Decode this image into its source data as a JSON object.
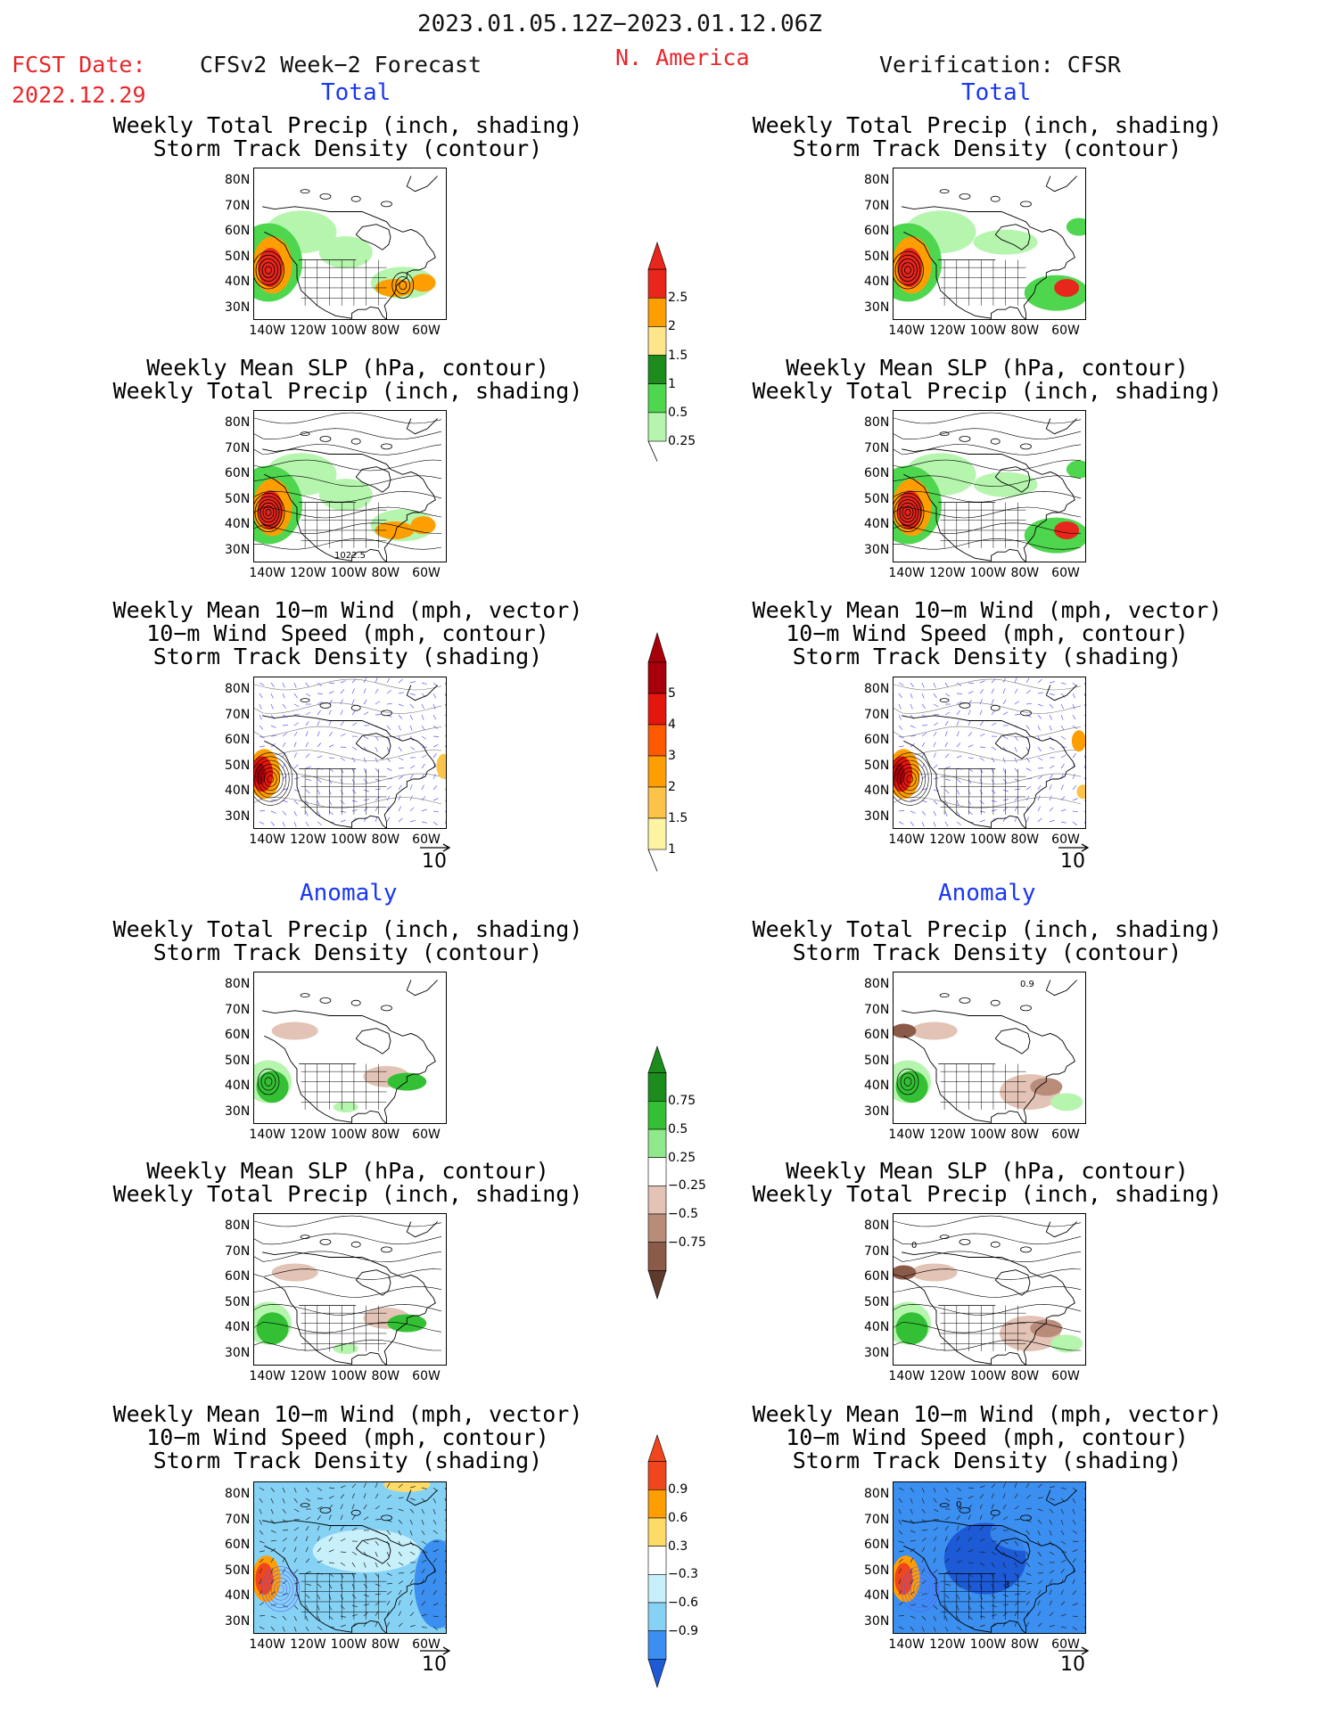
{
  "header": {
    "date_range": "2023.01.05.12Z−2023.01.12.06Z",
    "fcst_date_label": "FCST Date:",
    "fcst_date_value": "2022.12.29",
    "model_title": "CFSv2 Week−2 Forecast",
    "region": "N. America",
    "verification": "Verification: CFSR"
  },
  "sections": {
    "total": "Total",
    "anomaly": "Anomaly"
  },
  "panel_titles": {
    "precip_track": [
      "Weekly Total Precip (inch, shading)",
      "Storm Track Density (contour)"
    ],
    "slp_precip": [
      "Weekly Mean SLP (hPa, contour)",
      "Weekly Total Precip (inch, shading)"
    ],
    "wind_track": [
      "Weekly Mean 10−m Wind (mph, vector)",
      "10−m Wind Speed (mph, contour)",
      "Storm Track Density (shading)"
    ]
  },
  "axes": {
    "lat_labels": [
      "80N",
      "70N",
      "60N",
      "50N",
      "40N",
      "30N"
    ],
    "lon_labels": [
      "140W",
      "120W",
      "100W",
      "80W",
      "60W"
    ]
  },
  "vector_ref": "10",
  "map_annotations": {
    "slp_contour_label": "1022.5",
    "cfsr_precip_anom_label": "0.9",
    "cfsr_slp_anom_label": "0",
    "cfsr_wind_anom_label_top": "0",
    "cfsr_wind_anom_label_mid": "3"
  },
  "colorbars": [
    {
      "name": "total-precip",
      "labels": [
        "2.5",
        "2",
        "1.5",
        "1",
        "0.5",
        "0.25"
      ],
      "colors": [
        "#e8261c",
        "#ff9e00",
        "#fde68a",
        "#1c8c1c",
        "#4fd64f",
        "#b5f5ae"
      ]
    },
    {
      "name": "total-storm-track",
      "labels": [
        "5",
        "4",
        "3",
        "2",
        "1.5",
        "1"
      ],
      "colors": [
        "#a8000a",
        "#e3170d",
        "#ff5a00",
        "#ff9e00",
        "#fcc34a",
        "#fdf4a3"
      ]
    },
    {
      "name": "anom-precip",
      "labels": [
        "0.75",
        "0.5",
        "0.25",
        "−0.25",
        "−0.5",
        "−0.75"
      ],
      "colors": [
        "#1c8c1c",
        "#34c034",
        "#8fe88a",
        "#ffffff",
        "#e2c3b5",
        "#b98c7a",
        "#8c5a48",
        "#5e3b2d"
      ]
    },
    {
      "name": "anom-storm-track",
      "labels": [
        "0.9",
        "0.6",
        "0.3",
        "−0.3",
        "−0.6",
        "−0.9"
      ],
      "colors": [
        "#f0461e",
        "#ff9e00",
        "#fddb66",
        "#ffffff",
        "#c8f0fa",
        "#86d2f5",
        "#3b8ff0",
        "#1c5ad6"
      ]
    }
  ],
  "fill_colors": {
    "precip_green": "#4fd64f",
    "precip_light": "#b5f5ae",
    "precip_dark": "#1c8c1c",
    "precip_red": "#e8261c",
    "precip_orange": "#ff9e00",
    "dry_brown": "#c8a898",
    "wind_blue": "#5a5aff",
    "anom_blue": "#3b8ff0",
    "anom_cyan": "#86d2f5",
    "anom_deep": "#1c5ad6"
  }
}
